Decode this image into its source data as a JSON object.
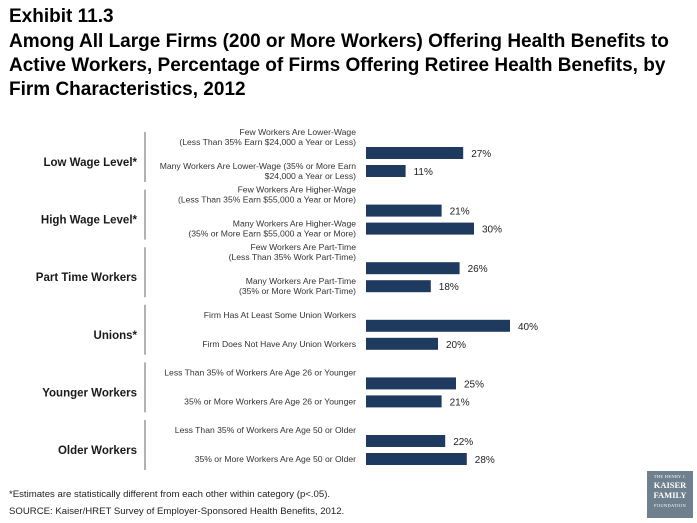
{
  "header": {
    "exhibit": "Exhibit 11.3",
    "title": "Among All Large Firms (200 or More Workers) Offering Health Benefits to Active Workers, Percentage of Firms Offering Retiree Health Benefits, by Firm Characteristics, 2012"
  },
  "chart_data": {
    "type": "bar",
    "orientation": "horizontal",
    "value_suffix": "%",
    "color": "#1f3a5f",
    "groups": [
      {
        "label": "Low Wage Level*",
        "items": [
          {
            "label": [
              "Few Workers Are Lower-Wage",
              "(Less Than 35% Earn $24,000 a Year or Less)"
            ],
            "value": 27
          },
          {
            "label": [
              "Many Workers Are Lower-Wage (35% or More Earn",
              "$24,000 a Year or Less)"
            ],
            "value": 11
          }
        ]
      },
      {
        "label": "High Wage Level*",
        "items": [
          {
            "label": [
              "Few Workers Are Higher-Wage",
              "(Less Than 35% Earn $55,000 a Year or More)"
            ],
            "value": 21
          },
          {
            "label": [
              "Many Workers Are Higher-Wage",
              "(35% or More Earn $55,000 a Year or More)"
            ],
            "value": 30
          }
        ]
      },
      {
        "label": "Part Time Workers",
        "items": [
          {
            "label": [
              "Few Workers Are Part-Time",
              "(Less Than 35% Work Part-Time)"
            ],
            "value": 26
          },
          {
            "label": [
              "Many Workers Are Part-Time",
              "(35% or More Work Part-Time)"
            ],
            "value": 18
          }
        ]
      },
      {
        "label": "Unions*",
        "items": [
          {
            "label": [
              "Firm Has At Least Some Union Workers"
            ],
            "value": 40
          },
          {
            "label": [
              "Firm Does Not Have Any Union Workers"
            ],
            "value": 20
          }
        ]
      },
      {
        "label": "Younger Workers",
        "items": [
          {
            "label": [
              "Less Than 35% of Workers Are Age 26 or Younger"
            ],
            "value": 25
          },
          {
            "label": [
              "35% or More Workers Are Age 26 or Younger"
            ],
            "value": 21
          }
        ]
      },
      {
        "label": "Older Workers",
        "items": [
          {
            "label": [
              "Less Than 35% of Workers Are Age 50 or Older"
            ],
            "value": 22
          },
          {
            "label": [
              "35% or More Workers Are Age 50 or Older"
            ],
            "value": 28
          }
        ]
      }
    ]
  },
  "footnote": "*Estimates are statistically different from each other within category (p<.05).",
  "source": "SOURCE:  Kaiser/HRET Survey of Employer-Sponsored Health Benefits, 2012.",
  "logo": {
    "line1": "THE HENRY J.",
    "line2": "KAISER",
    "line3": "FAMILY",
    "line4": "FOUNDATION"
  }
}
